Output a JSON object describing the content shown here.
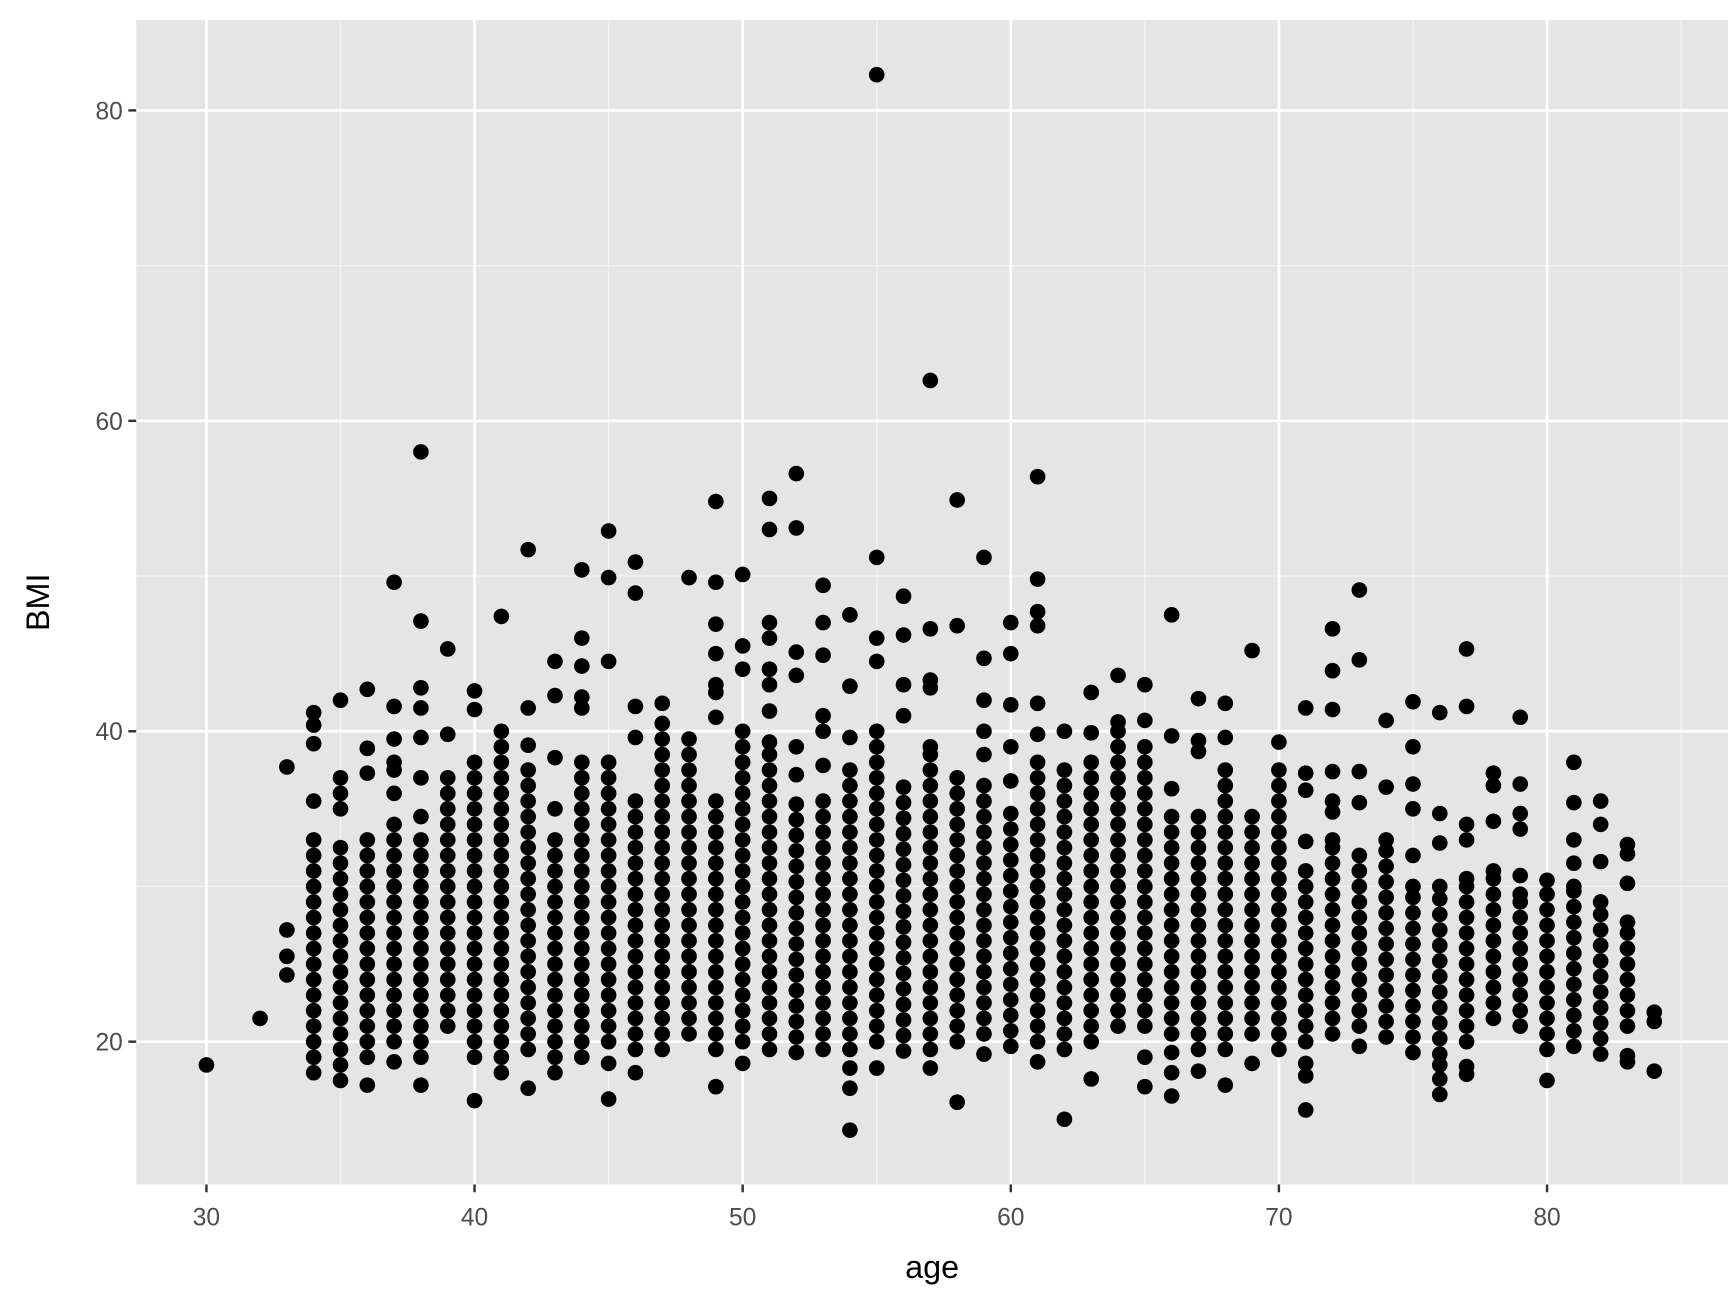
{
  "chart_data": {
    "type": "scatter",
    "x_label": "age",
    "y_label": "BMI",
    "color": "#000000",
    "grid": true,
    "xlim": [
      27.38,
      86.75
    ],
    "ylim": [
      10.8,
      85.82
    ],
    "xticks": [
      30,
      40,
      50,
      60,
      70,
      80
    ],
    "yticks": [
      20,
      40,
      60,
      80
    ],
    "minor_xticks": [
      35,
      45,
      55,
      65,
      75,
      85
    ],
    "minor_yticks": [
      30,
      50,
      70
    ],
    "groups": [
      {
        "x": 30,
        "y": [
          18.5
        ]
      },
      {
        "x": 32,
        "y": [
          21.5
        ]
      },
      {
        "x": 33,
        "y": [
          24.3,
          25.5,
          27.2,
          37.7
        ]
      },
      {
        "x": 34,
        "y": [
          18,
          19,
          20,
          21,
          22,
          23,
          24,
          25,
          26,
          27,
          28,
          29,
          30,
          31,
          32,
          33,
          35.5,
          39.2,
          40.4,
          41.2
        ]
      },
      {
        "x": 35,
        "y": [
          17.5,
          18.5,
          19.5,
          20.5,
          21.5,
          22.5,
          23.5,
          24.5,
          25.5,
          26.5,
          27.5,
          28.5,
          29.5,
          30.5,
          31.5,
          32.5,
          35,
          36,
          37,
          42
        ]
      },
      {
        "x": 36,
        "y": [
          17.2,
          19,
          20,
          21,
          22,
          23,
          24,
          25,
          26,
          27,
          28,
          29,
          30,
          31,
          32,
          33,
          37.3,
          38.9,
          42.7
        ]
      },
      {
        "x": 37,
        "y": [
          18.7,
          20,
          21,
          22,
          23,
          24,
          25,
          26,
          27,
          28,
          29,
          30,
          31,
          32,
          33,
          34,
          36,
          37.5,
          38,
          39.5,
          41.6,
          49.6
        ]
      },
      {
        "x": 38,
        "y": [
          17.2,
          19,
          20,
          21,
          22,
          23,
          24,
          25,
          26,
          27,
          28,
          29,
          30,
          31,
          32,
          33,
          34.5,
          37,
          39.6,
          41.5,
          42.8,
          47.1,
          58
        ]
      },
      {
        "x": 39,
        "y": [
          21,
          22,
          23,
          24,
          25,
          26,
          27,
          28,
          29,
          30,
          31,
          32,
          33,
          34,
          35,
          36,
          37,
          39.8,
          45.3
        ]
      },
      {
        "x": 40,
        "y": [
          16.2,
          19,
          20,
          21,
          22,
          23,
          24,
          25,
          26,
          27,
          28,
          29,
          30,
          31,
          32,
          33,
          34,
          35,
          36,
          37,
          38,
          41.4,
          42.6
        ]
      },
      {
        "x": 41,
        "y": [
          18,
          19,
          20,
          21,
          22,
          23,
          24,
          25,
          26,
          27,
          28,
          29,
          30,
          31,
          32,
          33,
          34,
          35,
          36,
          37,
          38,
          39,
          40,
          47.4
        ]
      },
      {
        "x": 42,
        "y": [
          17,
          19.5,
          20.5,
          21.5,
          22.5,
          23.5,
          24.5,
          25.5,
          26.5,
          27.5,
          28.5,
          29.5,
          30.5,
          31.5,
          32.5,
          33.5,
          34.5,
          35.5,
          36.5,
          37.5,
          39.1,
          41.5,
          51.7
        ]
      },
      {
        "x": 43,
        "y": [
          18,
          19,
          20,
          21,
          22,
          23,
          24,
          25,
          26,
          27,
          28,
          29,
          30,
          31,
          32,
          33,
          35,
          38.3,
          42.3,
          44.5
        ]
      },
      {
        "x": 44,
        "y": [
          19,
          20,
          21,
          22,
          23,
          24,
          25,
          26,
          27,
          28,
          29,
          30,
          31,
          32,
          33,
          34,
          35,
          36,
          37,
          38,
          41.5,
          42.2,
          44.2,
          46,
          50.4
        ]
      },
      {
        "x": 45,
        "y": [
          16.3,
          18.6,
          20,
          21,
          22,
          23,
          24,
          25,
          26,
          27,
          28,
          29,
          30,
          31,
          32,
          33,
          34,
          35,
          36,
          37,
          38,
          44.5,
          49.9,
          52.9
        ]
      },
      {
        "x": 46,
        "y": [
          18,
          19.5,
          20.5,
          21.5,
          22.5,
          23.5,
          24.5,
          25.5,
          26.5,
          27.5,
          28.5,
          29.5,
          30.5,
          31.5,
          32.5,
          33.5,
          34.5,
          35.5,
          39.6,
          41.6,
          48.9,
          50.9
        ]
      },
      {
        "x": 47,
        "y": [
          19.5,
          20.5,
          21.5,
          22.5,
          23.5,
          24.5,
          25.5,
          26.5,
          27.5,
          28.5,
          29.5,
          30.5,
          31.5,
          32.5,
          33.5,
          34.5,
          35.5,
          36.5,
          37.5,
          38.5,
          39.5,
          40.5,
          41.8
        ]
      },
      {
        "x": 48,
        "y": [
          20.5,
          21.5,
          22.5,
          23.5,
          24.5,
          25.5,
          26.5,
          27.5,
          28.5,
          29.5,
          30.5,
          31.5,
          32.5,
          33.5,
          34.5,
          35.5,
          36.5,
          37.5,
          38.5,
          39.5,
          49.9
        ]
      },
      {
        "x": 49,
        "y": [
          17.1,
          19.5,
          20.5,
          21.5,
          22.5,
          23.5,
          24.5,
          25.5,
          26.5,
          27.5,
          28.5,
          29.5,
          30.5,
          31.5,
          32.5,
          33.5,
          34.5,
          35.5,
          40.9,
          42.5,
          43,
          45,
          46.9,
          49.6,
          54.8
        ]
      },
      {
        "x": 50,
        "y": [
          18.6,
          20,
          21,
          22,
          23,
          24,
          25,
          26,
          27,
          28,
          29,
          30,
          31,
          32,
          33,
          34,
          35,
          36,
          37,
          38,
          39,
          40,
          44,
          45.5,
          50.1
        ]
      },
      {
        "x": 51,
        "y": [
          19.5,
          20.5,
          21.5,
          22.5,
          23.5,
          24.5,
          25.5,
          26.5,
          27.5,
          28.5,
          29.5,
          30.5,
          31.5,
          32.5,
          33.5,
          34.5,
          35.5,
          36.5,
          37.5,
          38.5,
          39.3,
          41.3,
          43,
          44,
          46,
          47,
          53,
          55
        ]
      },
      {
        "x": 52,
        "y": [
          19.3,
          20.3,
          21.3,
          22.3,
          23.3,
          24.3,
          25.3,
          26.3,
          27.3,
          28.3,
          29.3,
          30.3,
          31.3,
          32.3,
          33.3,
          34.3,
          35.3,
          37.2,
          39,
          43.6,
          45.1,
          53.1,
          56.6
        ]
      },
      {
        "x": 53,
        "y": [
          19.5,
          20.5,
          21.5,
          22.5,
          23.5,
          24.5,
          25.5,
          26.5,
          27.5,
          28.5,
          29.5,
          30.5,
          31.5,
          32.5,
          33.5,
          34.5,
          35.5,
          37.8,
          40,
          41,
          44.9,
          47,
          49.4
        ]
      },
      {
        "x": 54,
        "y": [
          14.3,
          17,
          18.3,
          19.5,
          20.5,
          21.5,
          22.5,
          23.5,
          24.5,
          25.5,
          26.5,
          27.5,
          28.5,
          29.5,
          30.5,
          31.5,
          32.5,
          33.5,
          34.5,
          35.5,
          36.5,
          37.5,
          39.6,
          42.9,
          47.5
        ]
      },
      {
        "x": 55,
        "y": [
          18.3,
          20,
          21,
          22,
          23,
          24,
          25,
          26,
          27,
          28,
          29,
          30,
          31,
          32,
          33,
          34,
          35,
          36,
          37,
          38,
          39,
          40,
          44.5,
          46,
          51.2,
          82.3
        ]
      },
      {
        "x": 56,
        "y": [
          19.4,
          20.4,
          21.4,
          22.4,
          23.4,
          24.4,
          25.4,
          26.4,
          27.4,
          28.4,
          29.4,
          30.4,
          31.4,
          32.4,
          33.4,
          34.4,
          35.4,
          36.4,
          41,
          43,
          46.2,
          48.7
        ]
      },
      {
        "x": 57,
        "y": [
          18.3,
          19.5,
          20.5,
          21.5,
          22.5,
          23.5,
          24.5,
          25.5,
          26.5,
          27.5,
          28.5,
          29.5,
          30.5,
          31.5,
          32.5,
          33.5,
          34.5,
          35.5,
          36.5,
          37.5,
          38.5,
          39,
          42.8,
          43.3,
          46.6,
          62.6
        ]
      },
      {
        "x": 58,
        "y": [
          16.1,
          20,
          21,
          22,
          23,
          24,
          25,
          26,
          27,
          28,
          29,
          30,
          31,
          32,
          33,
          34,
          35,
          36,
          37,
          46.8,
          54.9
        ]
      },
      {
        "x": 59,
        "y": [
          19.2,
          20.5,
          21.5,
          22.5,
          23.5,
          24.5,
          25.5,
          26.5,
          27.5,
          28.5,
          29.5,
          30.5,
          31.5,
          32.5,
          33.5,
          34.5,
          35.5,
          36.5,
          38.5,
          40,
          42,
          44.7,
          51.2
        ]
      },
      {
        "x": 60,
        "y": [
          19.7,
          20.7,
          21.7,
          22.7,
          23.7,
          24.7,
          25.7,
          26.7,
          27.7,
          28.7,
          29.7,
          30.7,
          31.7,
          32.7,
          33.7,
          34.7,
          36.8,
          39,
          41.7,
          45,
          47
        ]
      },
      {
        "x": 61,
        "y": [
          18.7,
          20,
          21,
          22,
          23,
          24,
          25,
          26,
          27,
          28,
          29,
          30,
          31,
          32,
          33,
          34,
          35,
          36,
          37,
          38,
          39.8,
          41.8,
          46.8,
          47.7,
          49.8,
          56.4
        ]
      },
      {
        "x": 62,
        "y": [
          15,
          19.5,
          20.5,
          21.5,
          22.5,
          23.5,
          24.5,
          25.5,
          26.5,
          27.5,
          28.5,
          29.5,
          30.5,
          31.5,
          32.5,
          33.5,
          34.5,
          35.5,
          36.5,
          37.5,
          40
        ]
      },
      {
        "x": 63,
        "y": [
          17.6,
          20,
          21,
          22,
          23,
          24,
          25,
          26,
          27,
          28,
          29,
          30,
          31,
          32,
          33,
          34,
          35,
          36,
          37,
          38,
          39.9,
          42.5
        ]
      },
      {
        "x": 64,
        "y": [
          21,
          22,
          23,
          24,
          25,
          26,
          27,
          28,
          29,
          30,
          31,
          32,
          33,
          34,
          35,
          36,
          37,
          38,
          39,
          40,
          40.6,
          43.6
        ]
      },
      {
        "x": 65,
        "y": [
          17.1,
          19,
          21,
          22,
          23,
          24,
          25,
          26,
          27,
          28,
          29,
          30,
          31,
          32,
          33,
          34,
          35,
          36,
          37,
          38,
          39,
          40.7,
          43
        ]
      },
      {
        "x": 66,
        "y": [
          16.5,
          18,
          19.3,
          20.5,
          21.5,
          22.5,
          23.5,
          24.5,
          25.5,
          26.5,
          27.5,
          28.5,
          29.5,
          30.5,
          31.5,
          32.5,
          33.5,
          34.5,
          36.3,
          39.7,
          47.5
        ]
      },
      {
        "x": 67,
        "y": [
          18.1,
          19.5,
          20.5,
          21.5,
          22.5,
          23.5,
          24.5,
          25.5,
          26.5,
          27.5,
          28.5,
          29.5,
          30.5,
          31.5,
          32.5,
          33.5,
          34.5,
          38.7,
          39.4,
          42.1
        ]
      },
      {
        "x": 68,
        "y": [
          17.2,
          19.5,
          20.5,
          21.5,
          22.5,
          23.5,
          24.5,
          25.5,
          26.5,
          27.5,
          28.5,
          29.5,
          30.5,
          31.5,
          32.5,
          33.5,
          34.5,
          35.5,
          36.5,
          37.5,
          39.6,
          41.8
        ]
      },
      {
        "x": 69,
        "y": [
          18.6,
          20.5,
          21.5,
          22.5,
          23.5,
          24.5,
          25.5,
          26.5,
          27.5,
          28.5,
          29.5,
          30.5,
          31.5,
          32.5,
          33.5,
          34.5,
          45.2
        ]
      },
      {
        "x": 70,
        "y": [
          19.5,
          20.5,
          21.5,
          22.5,
          23.5,
          24.5,
          25.5,
          26.5,
          27.5,
          28.5,
          29.5,
          30.5,
          31.5,
          32.5,
          33.5,
          34.5,
          35.5,
          36.5,
          37.5,
          39.3
        ]
      },
      {
        "x": 71,
        "y": [
          15.6,
          17.8,
          18.6,
          20,
          21,
          22,
          23,
          24,
          25,
          26,
          27,
          28,
          29,
          30,
          31,
          32.9,
          36.2,
          37.3,
          41.5
        ]
      },
      {
        "x": 72,
        "y": [
          20.5,
          21.5,
          22.5,
          23.5,
          24.5,
          25.5,
          26.5,
          27.5,
          28.5,
          29.5,
          30.5,
          31.5,
          32.5,
          33,
          34.8,
          35.5,
          37.4,
          41.4,
          43.9,
          46.6
        ]
      },
      {
        "x": 73,
        "y": [
          19.7,
          21,
          22,
          23,
          24,
          25,
          26,
          27,
          28,
          29,
          30,
          31,
          32,
          35.4,
          37.4,
          44.6,
          49.1
        ]
      },
      {
        "x": 74,
        "y": [
          20.3,
          21.3,
          22.3,
          23.3,
          24.3,
          25.3,
          26.3,
          27.3,
          28.3,
          29.3,
          30.3,
          31.3,
          32.3,
          33,
          36.4,
          40.7
        ]
      },
      {
        "x": 75,
        "y": [
          19.3,
          20.3,
          21.3,
          22.3,
          23.3,
          24.3,
          25.3,
          26.3,
          27.3,
          28.3,
          29.3,
          30,
          32,
          35,
          36.6,
          39,
          41.9
        ]
      },
      {
        "x": 76,
        "y": [
          16.6,
          17.6,
          18.5,
          19.2,
          20.2,
          21.2,
          22.2,
          23.2,
          24.2,
          25.2,
          26.2,
          27.2,
          28.2,
          29.2,
          30,
          32.8,
          34.7,
          41.2
        ]
      },
      {
        "x": 77,
        "y": [
          17.9,
          18.4,
          20,
          21,
          22,
          23,
          24,
          25,
          26,
          27,
          28,
          29,
          30,
          30.5,
          33,
          34,
          41.6,
          45.3
        ]
      },
      {
        "x": 78,
        "y": [
          21.5,
          22.5,
          23.5,
          24.5,
          25.5,
          26.5,
          27.5,
          28.5,
          29.5,
          30.5,
          31,
          34.2,
          36.5,
          37.3
        ]
      },
      {
        "x": 79,
        "y": [
          21,
          22,
          23,
          24,
          25,
          26,
          27,
          28,
          29,
          29.5,
          30.7,
          33.7,
          34.7,
          36.6,
          40.9
        ]
      },
      {
        "x": 80,
        "y": [
          17.5,
          19.5,
          20.5,
          21.5,
          22.5,
          23.5,
          24.5,
          25.5,
          26.5,
          27.5,
          28.5,
          29.5,
          30.4
        ]
      },
      {
        "x": 81,
        "y": [
          19.7,
          20.7,
          21.7,
          22.7,
          23.7,
          24.7,
          25.7,
          26.7,
          27.7,
          28.7,
          29.7,
          30,
          31.5,
          33,
          35.4,
          38
        ]
      },
      {
        "x": 82,
        "y": [
          19.2,
          20.2,
          21.2,
          22.2,
          23.2,
          24.2,
          25.2,
          26.2,
          27.2,
          28.2,
          29,
          31.6,
          34,
          35.5
        ]
      },
      {
        "x": 83,
        "y": [
          18.7,
          19.1,
          21,
          22,
          23,
          24,
          25,
          26,
          27,
          27.7,
          30.2,
          32.1,
          32.7
        ]
      },
      {
        "x": 84,
        "y": [
          18.1,
          21.3,
          21.9
        ]
      }
    ]
  }
}
